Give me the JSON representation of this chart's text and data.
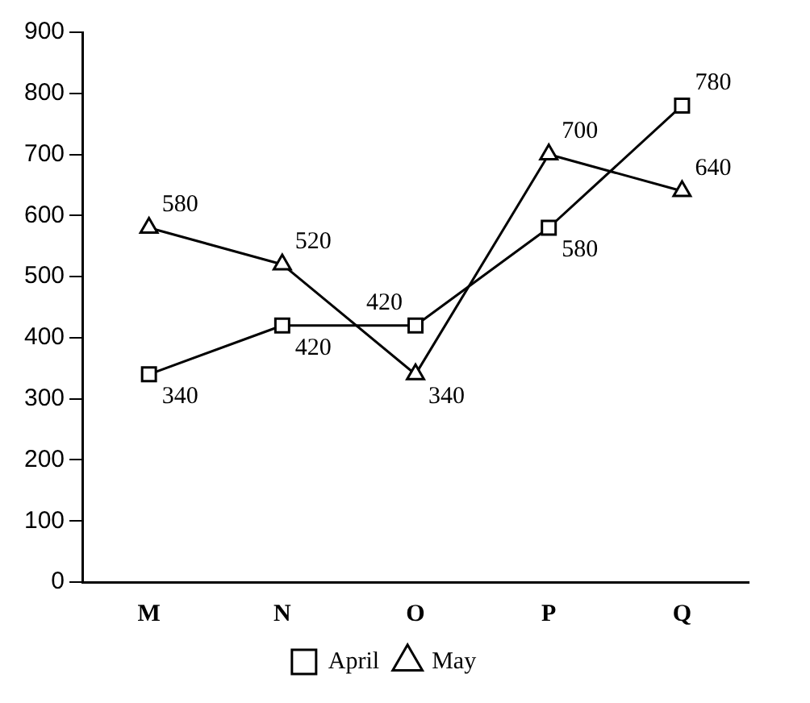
{
  "chart_data": {
    "type": "line",
    "categories": [
      "M",
      "N",
      "O",
      "P",
      "Q"
    ],
    "series": [
      {
        "name": "April",
        "color": "#000000",
        "marker": "square",
        "values": [
          340,
          420,
          420,
          580,
          780
        ]
      },
      {
        "name": "May",
        "color": "#000000",
        "marker": "triangle",
        "values": [
          580,
          520,
          340,
          700,
          640
        ]
      }
    ],
    "ylim": [
      0,
      900
    ],
    "yticks": [
      0,
      100,
      200,
      300,
      400,
      500,
      600,
      700,
      800,
      900
    ],
    "grid": false,
    "legend": "bottom",
    "data_labels": true
  }
}
